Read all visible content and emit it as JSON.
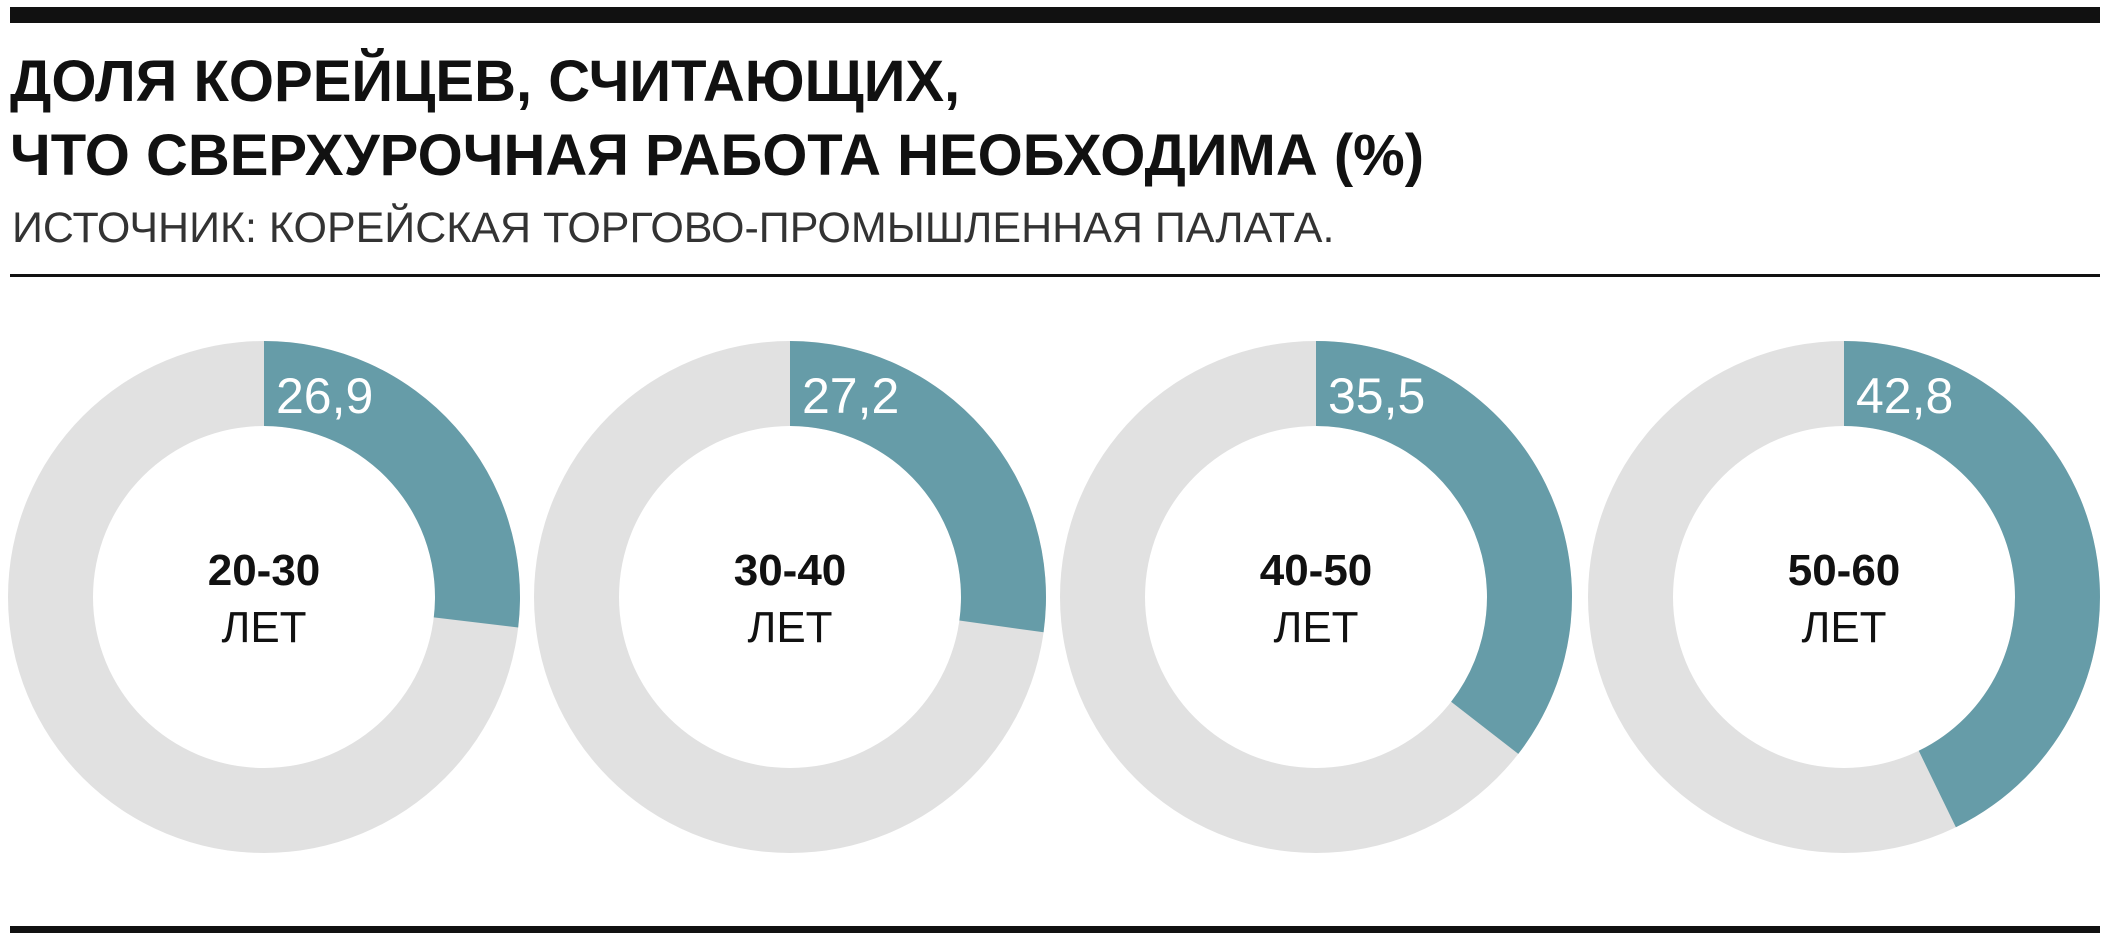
{
  "header": {
    "title": [
      "ДОЛЯ КОРЕЙЦЕВ, СЧИТАЮЩИХ,",
      "ЧТО СВЕРХУРОЧНАЯ РАБОТА НЕОБХОДИМА (%)"
    ],
    "subtitle": "ИСТОЧНИК: КОРЕЙСКАЯ ТОРГОВО-ПРОМЫШЛЕННАЯ ПАЛАТА."
  },
  "chart_data": [
    {
      "type": "donut",
      "label": "20-30",
      "sublabel": "ЛЕТ",
      "values": [
        26.9
      ],
      "value_labels": [
        "26,9"
      ],
      "color": "#669ca8",
      "track_color": "#e1e1e1"
    },
    {
      "type": "donut",
      "label": "30-40",
      "sublabel": "ЛЕТ",
      "values": [
        27.2
      ],
      "value_labels": [
        "27,2"
      ],
      "color": "#669ca8",
      "track_color": "#e1e1e1"
    },
    {
      "type": "donut",
      "label": "40-50",
      "sublabel": "ЛЕТ",
      "values": [
        35.5
      ],
      "value_labels": [
        "35,5"
      ],
      "color": "#669ca8",
      "track_color": "#e1e1e1"
    },
    {
      "type": "donut",
      "label": "50-60",
      "sublabel": "ЛЕТ",
      "values": [
        42.8
      ],
      "value_labels": [
        "42,8"
      ],
      "color": "#669ca8",
      "track_color": "#e1e1e1"
    }
  ]
}
